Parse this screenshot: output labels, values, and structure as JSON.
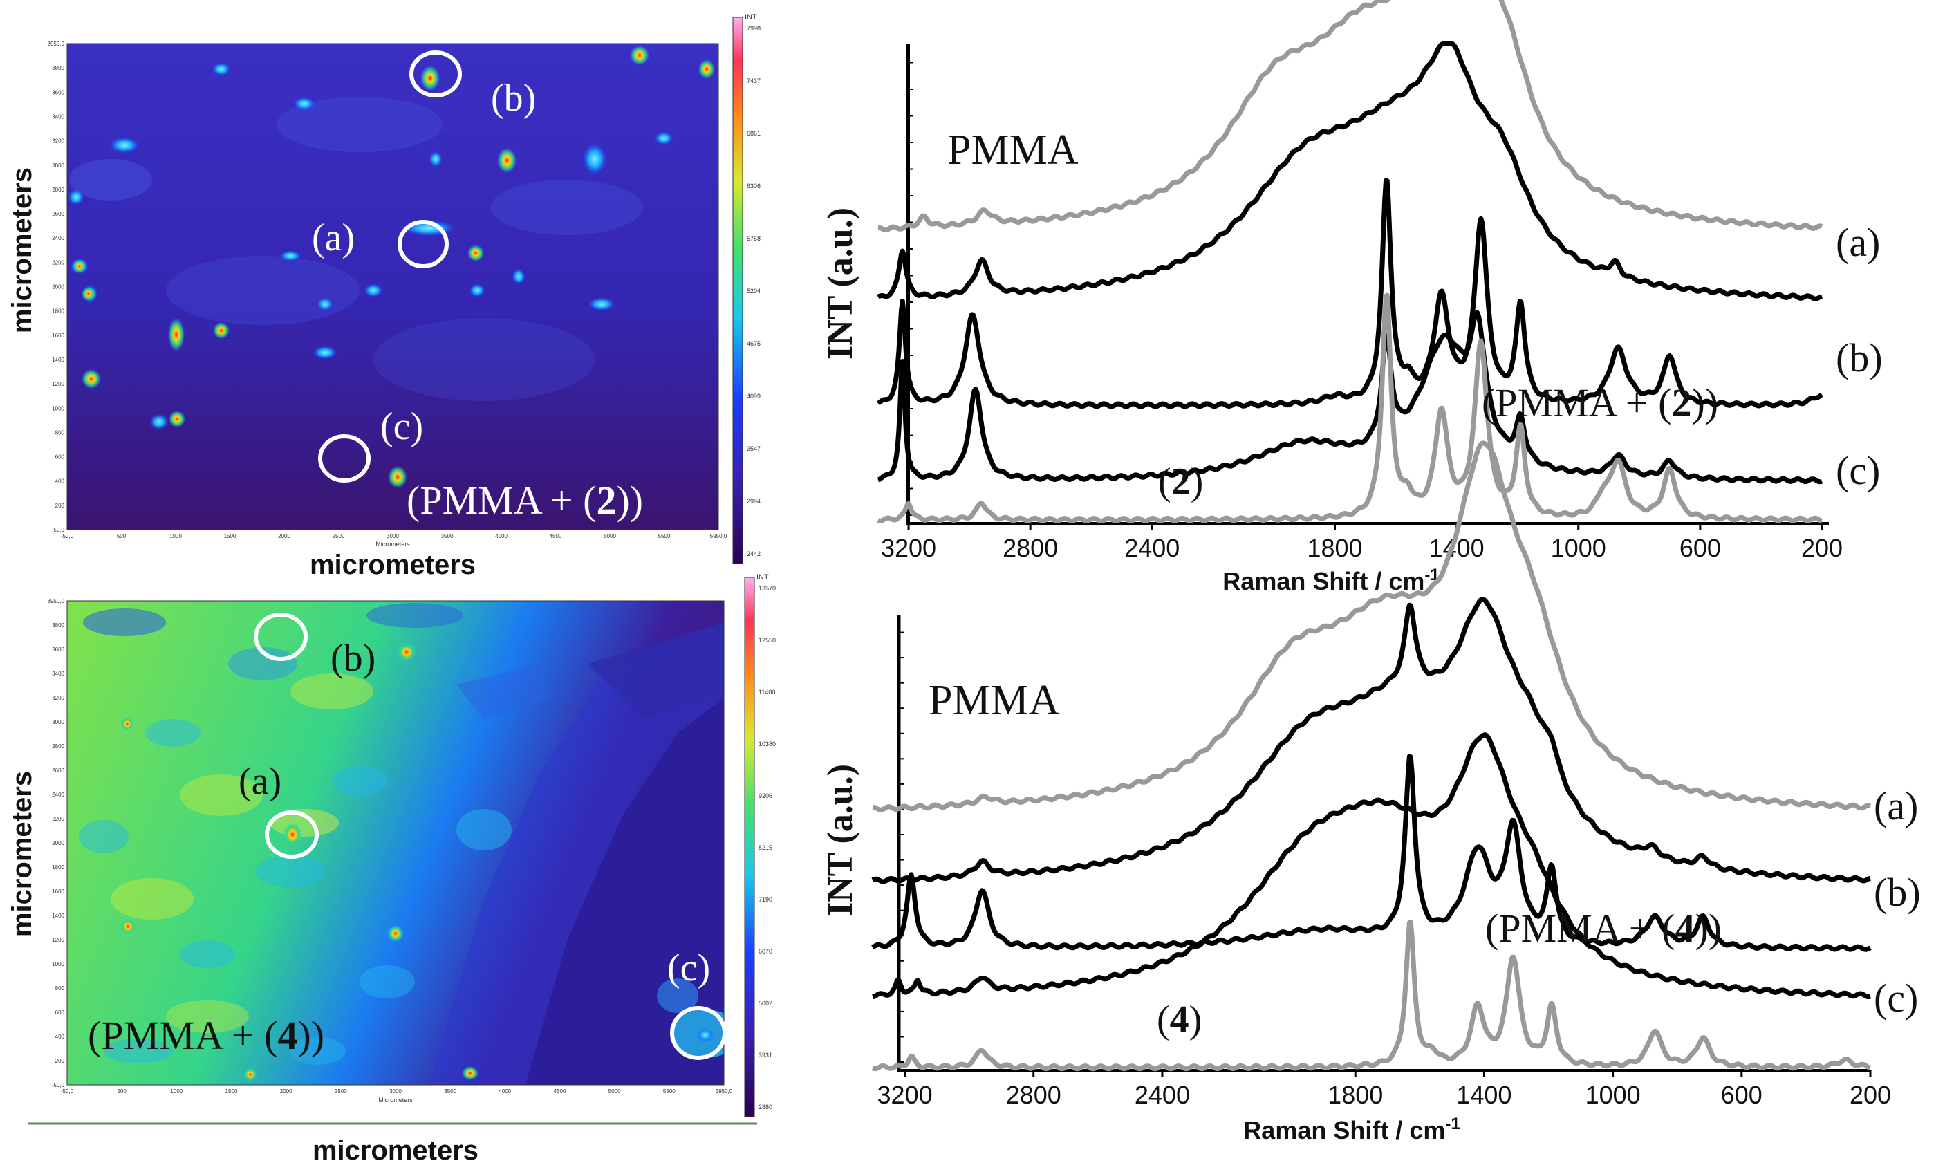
{
  "maps": [
    {
      "id": "map-top",
      "xlabel": "micrometers",
      "ylabel": "micrometers",
      "x_axis_small_label": "Micrometers",
      "x_ticks": [
        "-50,0",
        "500",
        "1000",
        "1500",
        "2000",
        "2500",
        "3000",
        "3500",
        "4000",
        "4500",
        "5000",
        "5500",
        "5950,0"
      ],
      "y_ticks": [
        "3950,0",
        "3800",
        "3600",
        "3400",
        "3200",
        "3000",
        "2800",
        "2600",
        "2400",
        "2200",
        "2000",
        "1800",
        "1600",
        "1400",
        "1200",
        "1000",
        "800",
        "600",
        "400",
        "200",
        "-50,0"
      ],
      "colorbar_title": "INT",
      "colorbar_ticks": [
        "7998",
        "7437",
        "6861",
        "6306",
        "5758",
        "5204",
        "4675",
        "4099",
        "3547",
        "2994",
        "2442"
      ],
      "annotations": [
        {
          "label": "(a)"
        },
        {
          "label": "(b)"
        },
        {
          "label": "(c)"
        }
      ],
      "sample": {
        "prefix": "(PMMA + (",
        "num": "2",
        "suffix": "))"
      }
    },
    {
      "id": "map-bottom",
      "xlabel": "micrometers",
      "ylabel": "micrometers",
      "x_axis_small_label": "Micrometers",
      "x_ticks": [
        "-50,0",
        "500",
        "1000",
        "1500",
        "2000",
        "2500",
        "3000",
        "3500",
        "4000",
        "4500",
        "5000",
        "5500",
        "5950,0"
      ],
      "y_ticks": [
        "3950,0",
        "3800",
        "3600",
        "3400",
        "3200",
        "3000",
        "2800",
        "2600",
        "2400",
        "2200",
        "2000",
        "1800",
        "1600",
        "1400",
        "1200",
        "1000",
        "800",
        "600",
        "400",
        "200",
        "-50,0"
      ],
      "colorbar_title": "INT",
      "colorbar_ticks": [
        "13570",
        "12550",
        "11400",
        "10380",
        "9206",
        "8215",
        "7190",
        "6070",
        "5002",
        "3931",
        "2880"
      ],
      "annotations": [
        {
          "label": "(a)"
        },
        {
          "label": "(b)"
        },
        {
          "label": "(c)"
        }
      ],
      "sample": {
        "prefix": "(PMMA + (",
        "num": "4",
        "suffix": "))"
      }
    }
  ],
  "chart_data": [
    {
      "type": "line",
      "title": "",
      "xlabel": "Raman Shift / cm-1",
      "ylabel": "INT (a.u.)",
      "xlim": [
        3300,
        200
      ],
      "x_ticks": [
        3200,
        2800,
        2400,
        1800,
        1400,
        1000,
        600,
        200
      ],
      "series": [
        {
          "name": "PMMA",
          "color": "#999999",
          "offset": 0.82,
          "peaks": [
            [
              2950,
              0.04,
              30
            ],
            [
              3150,
              0.03,
              20
            ],
            [
              2000,
              0.28,
              200
            ],
            [
              1700,
              0.45,
              250
            ],
            [
              1430,
              0.75,
              110
            ],
            [
              1250,
              0.35,
              120
            ]
          ]
        },
        {
          "name": "(a)",
          "color": "#000000",
          "offset": 0.62,
          "peaks": [
            [
              3220,
              0.14,
              14
            ],
            [
              2960,
              0.1,
              28
            ],
            [
              1900,
              0.3,
              250
            ],
            [
              1600,
              0.35,
              250
            ],
            [
              1420,
              0.4,
              110
            ],
            [
              1250,
              0.22,
              110
            ],
            [
              880,
              0.04,
              20
            ]
          ]
        },
        {
          "name": "(b)",
          "color": "#000000",
          "offset": 0.33,
          "peaks": [
            [
              3220,
              0.3,
              12
            ],
            [
              2990,
              0.26,
              30
            ],
            [
              1800,
              0.02,
              50
            ],
            [
              1630,
              0.64,
              18
            ],
            [
              1560,
              0.05,
              20
            ],
            [
              1450,
              0.3,
              30
            ],
            [
              1320,
              0.52,
              25
            ],
            [
              1190,
              0.28,
              18
            ],
            [
              870,
              0.16,
              35
            ],
            [
              700,
              0.14,
              25
            ],
            [
              200,
              0.03,
              40
            ]
          ]
        },
        {
          "name": "(c)",
          "color": "#000000",
          "offset": 0.11,
          "peaks": [
            [
              3220,
              0.34,
              10
            ],
            [
              2980,
              0.26,
              26
            ],
            [
              1900,
              0.1,
              200
            ],
            [
              1630,
              0.3,
              20
            ],
            [
              1440,
              0.38,
              100
            ],
            [
              1330,
              0.3,
              30
            ],
            [
              1190,
              0.12,
              18
            ],
            [
              870,
              0.06,
              30
            ],
            [
              700,
              0.05,
              25
            ]
          ]
        },
        {
          "name": "(2)",
          "color": "#999999",
          "offset": 0.0,
          "peaks": [
            [
              3200,
              0.05,
              12
            ],
            [
              2960,
              0.05,
              20
            ],
            [
              1630,
              0.64,
              18
            ],
            [
              1560,
              0.05,
              20
            ],
            [
              1450,
              0.3,
              25
            ],
            [
              1320,
              0.5,
              25
            ],
            [
              1190,
              0.25,
              18
            ],
            [
              920,
              0.05,
              25
            ],
            [
              870,
              0.16,
              30
            ],
            [
              700,
              0.14,
              25
            ]
          ]
        }
      ],
      "labels": [
        "PMMA",
        "(a)",
        "(b)",
        "(c)"
      ],
      "sample": {
        "prefix": "(PMMA + (",
        "num": "2",
        "suffix": "))"
      },
      "ref_label": {
        "open": "(",
        "num": "2",
        "close": ")"
      }
    },
    {
      "type": "line",
      "title": "",
      "xlabel": "Raman Shift / cm-1",
      "ylabel": "INT (a.u.)",
      "xlim": [
        3300,
        200
      ],
      "x_ticks": [
        3200,
        2800,
        2400,
        1800,
        1400,
        1000,
        600,
        200
      ],
      "series": [
        {
          "name": "PMMA",
          "color": "#999999",
          "offset": 0.7,
          "peaks": [
            [
              2950,
              0.02,
              30
            ],
            [
              2000,
              0.28,
              200
            ],
            [
              1700,
              0.42,
              250
            ],
            [
              1400,
              0.72,
              110
            ],
            [
              1250,
              0.3,
              120
            ]
          ]
        },
        {
          "name": "(a)",
          "color": "#000000",
          "offset": 0.5,
          "peaks": [
            [
              2960,
              0.04,
              28
            ],
            [
              1950,
              0.3,
              250
            ],
            [
              1630,
              0.22,
              20
            ],
            [
              1650,
              0.35,
              250
            ],
            [
              1400,
              0.5,
              110
            ],
            [
              1250,
              0.2,
              110
            ],
            [
              1190,
              0.05,
              20
            ],
            [
              880,
              0.03,
              30
            ],
            [
              720,
              0.03,
              25
            ]
          ]
        },
        {
          "name": "(b)",
          "color": "#000000",
          "offset": 0.33,
          "peaks": [
            [
              3180,
              0.2,
              16
            ],
            [
              2960,
              0.16,
              26
            ],
            [
              1900,
              0.05,
              250
            ],
            [
              1630,
              0.5,
              18
            ],
            [
              1420,
              0.25,
              50
            ],
            [
              1310,
              0.3,
              30
            ],
            [
              1190,
              0.2,
              18
            ],
            [
              870,
              0.08,
              35
            ],
            [
              720,
              0.08,
              25
            ]
          ]
        },
        {
          "name": "(c)",
          "color": "#000000",
          "offset": 0.18,
          "peaks": [
            [
              3220,
              0.04,
              10
            ],
            [
              3160,
              0.04,
              10
            ],
            [
              2960,
              0.04,
              25
            ],
            [
              1950,
              0.28,
              250
            ],
            [
              1700,
              0.35,
              250
            ],
            [
              1400,
              0.5,
              110
            ],
            [
              1250,
              0.15,
              110
            ]
          ]
        },
        {
          "name": "(4)",
          "color": "#999999",
          "offset": 0.0,
          "peaks": [
            [
              3180,
              0.03,
              12
            ],
            [
              2960,
              0.05,
              22
            ],
            [
              1630,
              0.4,
              16
            ],
            [
              1560,
              0.03,
              20
            ],
            [
              1420,
              0.16,
              25
            ],
            [
              1310,
              0.3,
              25
            ],
            [
              1190,
              0.16,
              18
            ],
            [
              870,
              0.1,
              25
            ],
            [
              720,
              0.08,
              25
            ],
            [
              280,
              0.02,
              30
            ]
          ]
        }
      ],
      "labels": [
        "PMMA",
        "(a)",
        "(b)",
        "(c)"
      ],
      "sample": {
        "prefix": "(PMMA + (",
        "num": "4",
        "suffix": "))"
      },
      "ref_label": {
        "open": "(",
        "num": "4",
        "close": ")"
      }
    }
  ]
}
